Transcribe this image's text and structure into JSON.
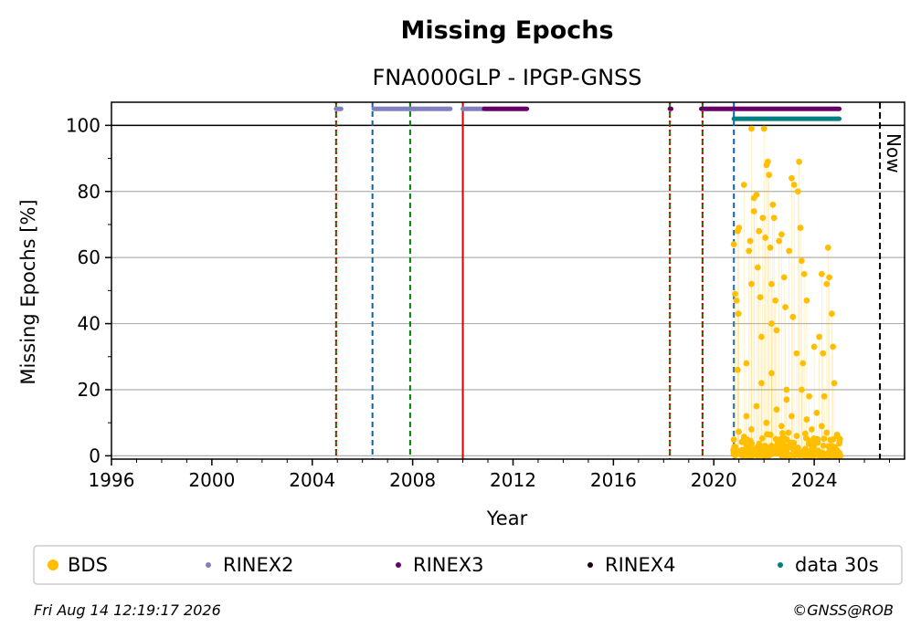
{
  "chart_data": {
    "type": "scatter",
    "title": "Missing Epochs",
    "subtitle": "FNA000GLP - IPGP-GNSS",
    "xlabel": "Year",
    "ylabel": "Missing Epochs [%]",
    "xlim": [
      1996.0,
      2027.6
    ],
    "ylim": [
      -1,
      107
    ],
    "xticks": [
      1996,
      2000,
      2004,
      2008,
      2012,
      2016,
      2020,
      2024
    ],
    "yticks": [
      0,
      20,
      40,
      60,
      80,
      100
    ],
    "grid": "y",
    "reference_line": 100,
    "now_label": "Now",
    "now_x": 2026.62,
    "vlines": [
      {
        "x": 2004.95,
        "color": "#008000",
        "style": "dashed"
      },
      {
        "x": 2004.95,
        "color": "#dd0000",
        "style": "dotted"
      },
      {
        "x": 2006.4,
        "color": "#1060b0",
        "style": "dashed"
      },
      {
        "x": 2007.9,
        "color": "#008000",
        "style": "dashed"
      },
      {
        "x": 2010.0,
        "color": "#dd0000",
        "style": "solid"
      },
      {
        "x": 2018.25,
        "color": "#008000",
        "style": "dashed"
      },
      {
        "x": 2018.25,
        "color": "#dd0000",
        "style": "dotted"
      },
      {
        "x": 2019.55,
        "color": "#008000",
        "style": "dashed"
      },
      {
        "x": 2019.55,
        "color": "#dd0000",
        "style": "dotted"
      },
      {
        "x": 2020.8,
        "color": "#1060b0",
        "style": "dashed"
      }
    ],
    "availability_bars": [
      {
        "name": "RINEX2",
        "y": 105,
        "color": "#8080c0",
        "segments": [
          [
            2004.95,
            2005.15
          ],
          [
            2006.45,
            2009.5
          ],
          [
            2010.0,
            2010.8
          ]
        ]
      },
      {
        "name": "RINEX3",
        "y": 105,
        "color": "#660066",
        "segments": [
          [
            2010.85,
            2012.55
          ],
          [
            2018.25,
            2018.3
          ],
          [
            2019.5,
            2025.0
          ]
        ]
      },
      {
        "name": "data 30s",
        "y": 102,
        "color": "#008080",
        "segments": [
          [
            2020.8,
            2025.0
          ]
        ]
      }
    ],
    "series": [
      {
        "name": "BDS",
        "color": "#ffbf00",
        "x_range": [
          2020.78,
          2025.05
        ],
        "points": [
          [
            2020.8,
            64
          ],
          [
            2020.85,
            49
          ],
          [
            2020.9,
            47
          ],
          [
            2020.95,
            68
          ],
          [
            2020.95,
            26
          ],
          [
            2021.0,
            69
          ],
          [
            2020.98,
            43
          ],
          [
            2021.2,
            82
          ],
          [
            2021.3,
            28
          ],
          [
            2021.4,
            62
          ],
          [
            2021.45,
            65
          ],
          [
            2021.5,
            52
          ],
          [
            2021.5,
            99
          ],
          [
            2021.6,
            78
          ],
          [
            2021.6,
            74
          ],
          [
            2021.7,
            79
          ],
          [
            2021.75,
            57
          ],
          [
            2021.8,
            68
          ],
          [
            2021.85,
            48
          ],
          [
            2021.9,
            36
          ],
          [
            2021.95,
            72
          ],
          [
            2022.0,
            99
          ],
          [
            2022.05,
            66
          ],
          [
            2022.1,
            88
          ],
          [
            2022.15,
            89
          ],
          [
            2022.2,
            85
          ],
          [
            2022.25,
            63
          ],
          [
            2022.3,
            52
          ],
          [
            2022.3,
            40
          ],
          [
            2022.35,
            76
          ],
          [
            2022.4,
            72
          ],
          [
            2022.45,
            47
          ],
          [
            2022.5,
            38
          ],
          [
            2022.6,
            65
          ],
          [
            2022.7,
            67
          ],
          [
            2022.8,
            54
          ],
          [
            2022.85,
            45
          ],
          [
            2022.9,
            20
          ],
          [
            2023.0,
            62
          ],
          [
            2023.1,
            84
          ],
          [
            2023.15,
            42
          ],
          [
            2023.2,
            82
          ],
          [
            2023.3,
            31
          ],
          [
            2023.35,
            80
          ],
          [
            2023.4,
            89
          ],
          [
            2023.45,
            69
          ],
          [
            2023.5,
            59
          ],
          [
            2023.55,
            28
          ],
          [
            2023.6,
            55
          ],
          [
            2023.7,
            47
          ],
          [
            2023.8,
            18
          ],
          [
            2024.0,
            33
          ],
          [
            2024.1,
            13
          ],
          [
            2024.2,
            36
          ],
          [
            2024.3,
            55
          ],
          [
            2024.35,
            31
          ],
          [
            2024.4,
            18
          ],
          [
            2024.5,
            52
          ],
          [
            2024.55,
            63
          ],
          [
            2024.6,
            54
          ],
          [
            2024.7,
            43
          ],
          [
            2024.75,
            33
          ],
          [
            2024.8,
            22
          ],
          [
            2021.3,
            12
          ],
          [
            2021.5,
            8
          ],
          [
            2021.7,
            15
          ],
          [
            2021.9,
            22
          ],
          [
            2022.1,
            10
          ],
          [
            2022.3,
            25
          ],
          [
            2022.5,
            14
          ],
          [
            2022.7,
            9
          ],
          [
            2022.9,
            17
          ],
          [
            2023.1,
            12
          ],
          [
            2023.3,
            6
          ],
          [
            2023.5,
            20
          ],
          [
            2023.7,
            11
          ],
          [
            2023.9,
            8
          ],
          [
            2024.1,
            5
          ],
          [
            2024.3,
            9
          ],
          [
            2024.5,
            7
          ],
          [
            2024.7,
            3
          ],
          [
            2024.9,
            6
          ]
        ]
      }
    ],
    "legend": [
      {
        "label": "BDS",
        "color": "#ffbf00",
        "size": "large"
      },
      {
        "label": "RINEX2",
        "color": "#8080c0",
        "size": "small"
      },
      {
        "label": "RINEX3",
        "color": "#660066",
        "size": "small"
      },
      {
        "label": "RINEX4",
        "color": "#1a0018",
        "size": "small"
      },
      {
        "label": "data 30s",
        "color": "#008080",
        "size": "small"
      }
    ]
  },
  "footer": {
    "timestamp": "Fri Aug 14 12:19:17 2026",
    "credit": "©GNSS@ROB"
  }
}
